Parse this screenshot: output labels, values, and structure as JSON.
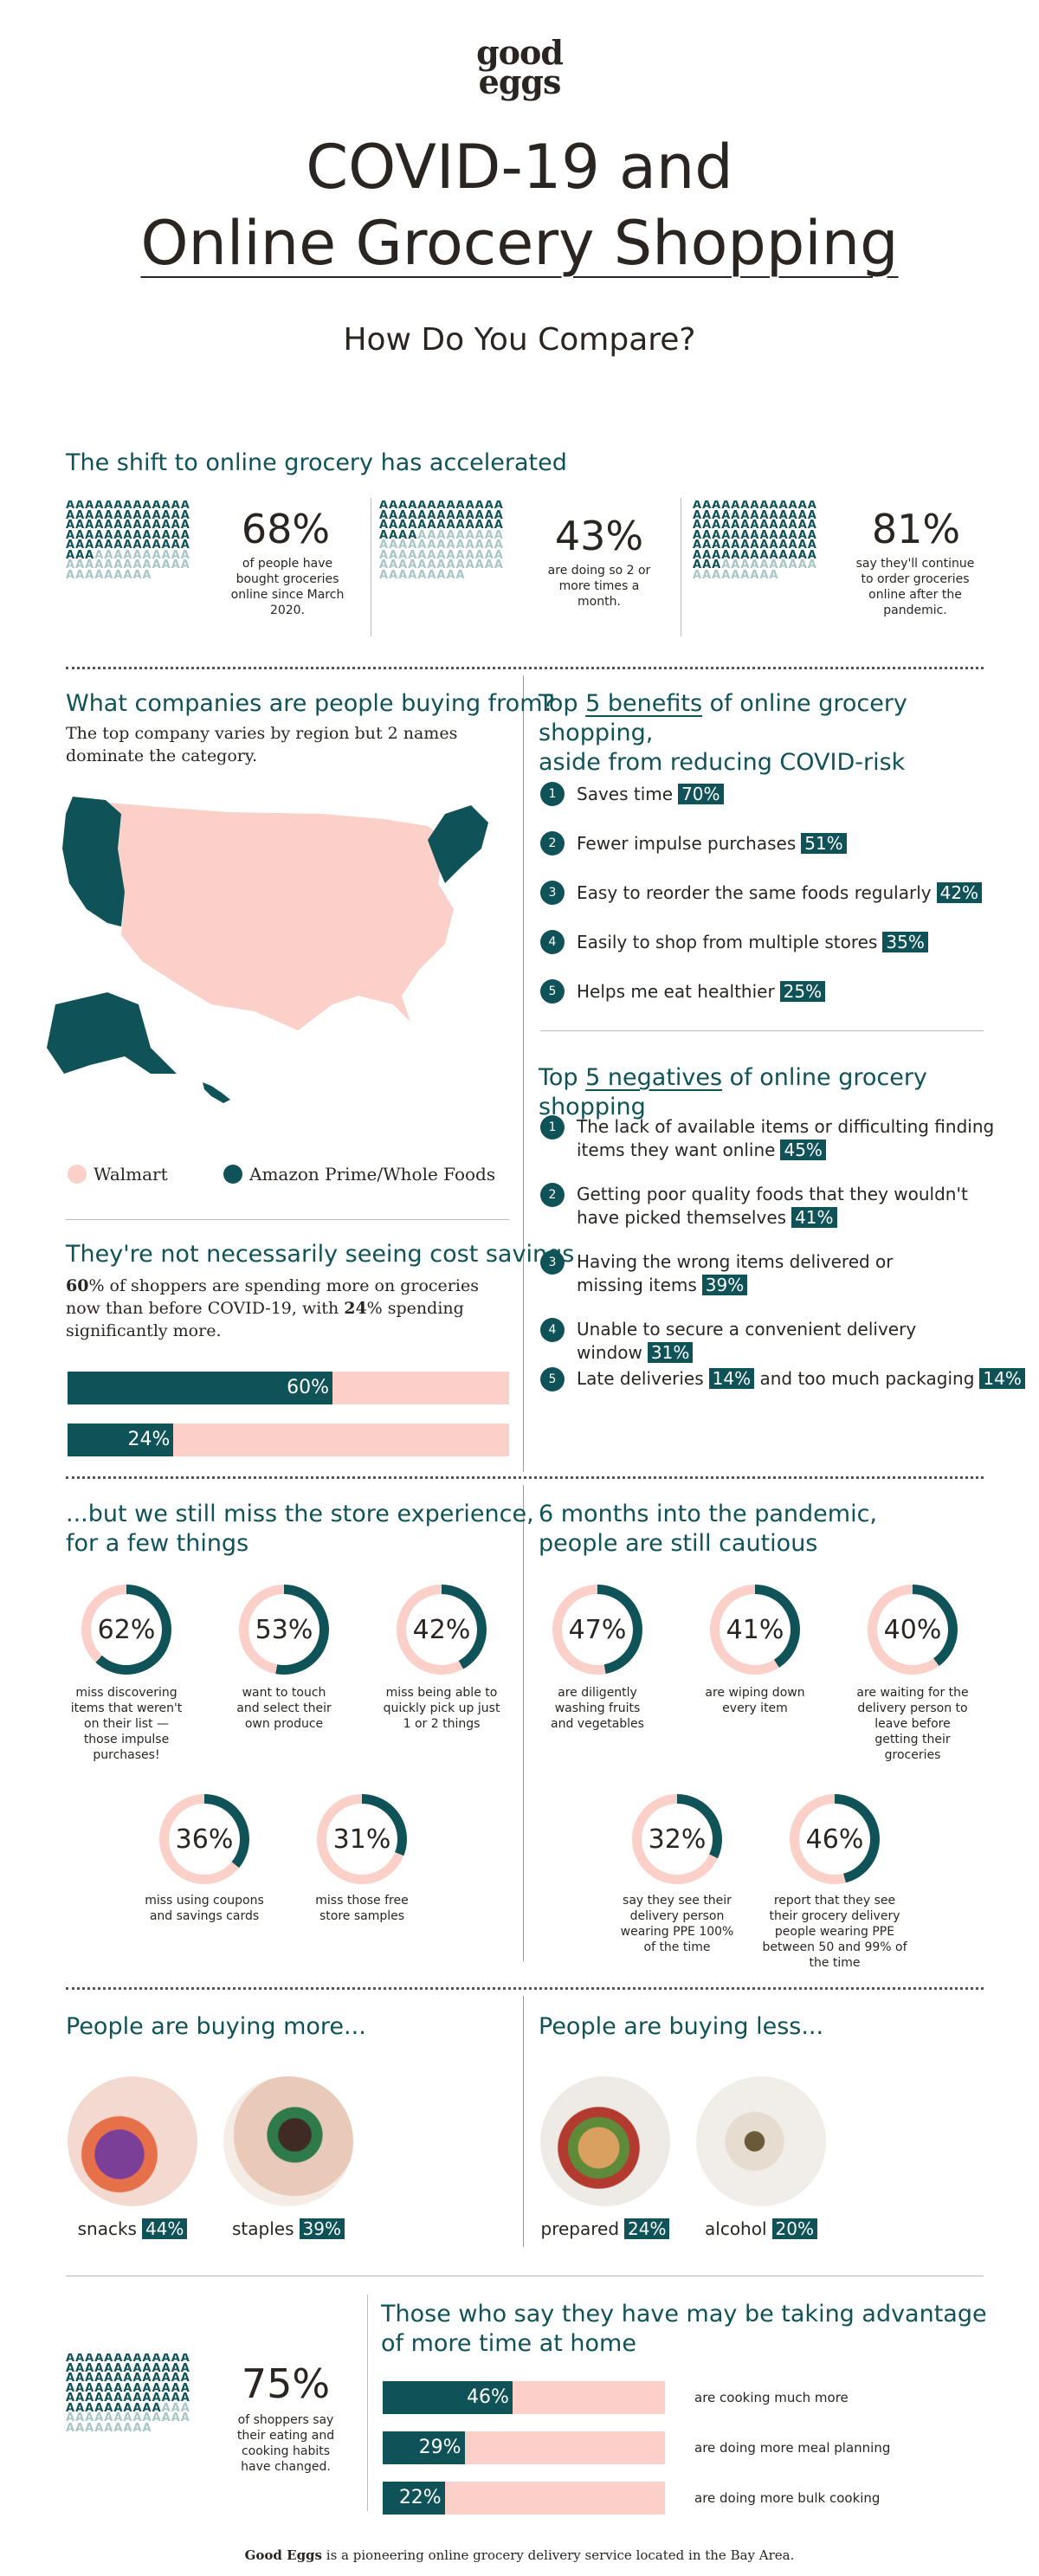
{
  "colors": {
    "teal": "#0f5257",
    "pink": "#fbd0c8",
    "text": "#2b2522"
  },
  "header": {
    "logo_line1": "good",
    "logo_line2": "eggs",
    "title_line1": "COVID-19 and",
    "title_line2": "Online Grocery Shopping",
    "subtitle": "How Do You Compare?"
  },
  "shift": {
    "heading": "The shift to online grocery has accelerated",
    "stats": [
      {
        "value": "68%",
        "text": "of people have bought groceries online since March 2020.",
        "fraction": 0.68
      },
      {
        "value": "43%",
        "text": "are doing so 2 or more times a month.",
        "fraction": 0.43
      },
      {
        "value": "81%",
        "text": "say they'll continue to order groceries online after the pandemic.",
        "fraction": 0.81
      }
    ]
  },
  "companies": {
    "heading": "What companies are people buying from?",
    "text": "The top company varies by region but 2 names dominate the category.",
    "legend": [
      {
        "label": "Walmart",
        "color": "#fbd0c8"
      },
      {
        "label": "Amazon Prime/Whole Foods",
        "color": "#0f5257"
      }
    ]
  },
  "cost": {
    "heading": "They're not necessarily seeing cost savings",
    "p1": "60",
    "p2": "% of shoppers are spending more on groceries now than before COVID-19, with ",
    "p3": "24",
    "p4": "% spending significantly more.",
    "bars": [
      {
        "label": "60%",
        "fraction": 0.6
      },
      {
        "label": "24%",
        "fraction": 0.24
      }
    ]
  },
  "benefits": {
    "h_pre": "Top ",
    "h_u": "5 benefits",
    "h_post": " of online grocery shopping,",
    "h_line2": "aside from reducing COVID-risk",
    "items": [
      {
        "n": "1",
        "text": "Saves time",
        "pct": "70%"
      },
      {
        "n": "2",
        "text": "Fewer impulse purchases",
        "pct": "51%"
      },
      {
        "n": "3",
        "text": "Easy to reorder the same foods regularly",
        "pct": "42%"
      },
      {
        "n": "4",
        "text": "Easily to shop from multiple stores",
        "pct": "35%"
      },
      {
        "n": "5",
        "text": "Helps me eat healthier",
        "pct": "25%"
      }
    ]
  },
  "negatives": {
    "h_pre": "Top ",
    "h_u": "5 negatives",
    "h_post": " of online grocery shopping",
    "items": [
      {
        "n": "1",
        "l1": "The lack of available items or difficulting finding",
        "l2": "items they want online",
        "pct": "45%"
      },
      {
        "n": "2",
        "l1": "Getting poor quality foods that they wouldn't",
        "l2": "have picked themselves",
        "pct": "41%"
      },
      {
        "n": "3",
        "l1": "Having the wrong items delivered or",
        "l2": "missing items",
        "pct": "39%"
      },
      {
        "n": "4",
        "l1": "Unable to secure a convenient delivery window",
        "l2": "",
        "pct": "31%"
      },
      {
        "n": "5",
        "l1": "Late deliveries",
        "l2": "",
        "pct": "14%",
        "mid": "and too much packaging",
        "pct2": "14%"
      }
    ]
  },
  "miss": {
    "h1": "...but we still miss the store experience,",
    "h2": "for a few things",
    "donuts": [
      {
        "value": "62%",
        "fraction": 0.62,
        "text": "miss discovering items that weren't on their list — those impulse purchases!"
      },
      {
        "value": "53%",
        "fraction": 0.53,
        "text": "want to touch and select their own produce"
      },
      {
        "value": "42%",
        "fraction": 0.42,
        "text": "miss being able to quickly pick up just 1 or 2 things"
      },
      {
        "value": "36%",
        "fraction": 0.36,
        "text": "miss using coupons and savings cards"
      },
      {
        "value": "31%",
        "fraction": 0.31,
        "text": "miss those free store samples"
      }
    ]
  },
  "cautious": {
    "h1": "6 months into the pandemic,",
    "h2": "people are still cautious",
    "donuts": [
      {
        "value": "47%",
        "fraction": 0.47,
        "text": "are diligently washing fruits and vegetables"
      },
      {
        "value": "41%",
        "fraction": 0.41,
        "text": "are wiping down every item"
      },
      {
        "value": "40%",
        "fraction": 0.4,
        "text": "are waiting for the delivery person to leave before getting their groceries"
      },
      {
        "value": "32%",
        "fraction": 0.32,
        "text": "say they see their delivery person wearing PPE 100% of the time"
      },
      {
        "value": "46%",
        "fraction": 0.46,
        "text": "report that they see their grocery delivery people wearing PPE between 50 and 99% of the time"
      }
    ]
  },
  "buying_more": {
    "heading": "People are buying more...",
    "items": [
      {
        "label": "snacks",
        "pct": "44%"
      },
      {
        "label": "staples",
        "pct": "39%"
      }
    ]
  },
  "buying_less": {
    "heading": "People are buying less...",
    "items": [
      {
        "label": "prepared",
        "pct": "24%"
      },
      {
        "label": "alcohol",
        "pct": "20%"
      }
    ]
  },
  "habits": {
    "value": "75%",
    "fraction": 0.75,
    "text": "of shoppers say their eating and cooking habits have changed.",
    "h1": "Those who say they have may be taking advantage",
    "h2": "of more time at home",
    "bars": [
      {
        "label": "46%",
        "fraction": 0.46,
        "text": "are cooking much more"
      },
      {
        "label": "29%",
        "fraction": 0.29,
        "text": "are doing more meal planning"
      },
      {
        "label": "22%",
        "fraction": 0.22,
        "text": "are doing more bulk cooking"
      }
    ]
  },
  "footer": {
    "bold": "Good Eggs",
    "rest": " is a pioneering online grocery delivery service located in the Bay Area."
  }
}
